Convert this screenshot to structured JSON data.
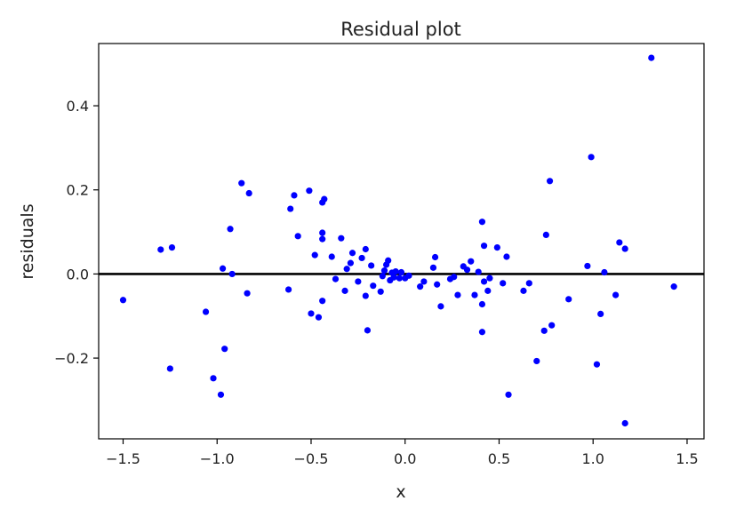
{
  "chart_data": {
    "type": "scatter",
    "title": "Residual plot",
    "xlabel": "x",
    "ylabel": "residuals",
    "xlim": [
      -1.63,
      1.59
    ],
    "ylim": [
      -0.392,
      0.548
    ],
    "xticks": [
      -1.5,
      -1.0,
      -0.5,
      0.0,
      0.5,
      1.0,
      1.5
    ],
    "xtick_labels": [
      "−1.5",
      "−1.0",
      "−0.5",
      "0.0",
      "0.5",
      "1.0",
      "1.5"
    ],
    "yticks": [
      -0.2,
      0.0,
      0.2,
      0.4
    ],
    "ytick_labels": [
      "−0.2",
      "0.0",
      "0.2",
      "0.4"
    ],
    "grid": false,
    "reference_line": {
      "y": 0.0,
      "color": "#000000"
    },
    "series": [
      {
        "color": "#0000ff",
        "points": [
          [
            -1.5,
            -0.062
          ],
          [
            -1.3,
            0.058
          ],
          [
            -1.24,
            0.063
          ],
          [
            -1.25,
            -0.225
          ],
          [
            -1.06,
            -0.09
          ],
          [
            -1.02,
            -0.248
          ],
          [
            -0.98,
            -0.287
          ],
          [
            -0.97,
            0.013
          ],
          [
            -0.96,
            -0.178
          ],
          [
            -0.93,
            0.107
          ],
          [
            -0.92,
            0.0
          ],
          [
            -0.87,
            0.216
          ],
          [
            -0.84,
            -0.046
          ],
          [
            -0.83,
            0.192
          ],
          [
            -0.62,
            -0.037
          ],
          [
            -0.61,
            0.155
          ],
          [
            -0.59,
            0.187
          ],
          [
            -0.57,
            0.09
          ],
          [
            -0.51,
            0.198
          ],
          [
            -0.5,
            -0.094
          ],
          [
            -0.48,
            0.045
          ],
          [
            -0.46,
            -0.103
          ],
          [
            -0.44,
            0.17
          ],
          [
            -0.43,
            0.178
          ],
          [
            -0.44,
            0.098
          ],
          [
            -0.44,
            0.083
          ],
          [
            -0.44,
            -0.064
          ],
          [
            -0.39,
            0.041
          ],
          [
            -0.37,
            -0.012
          ],
          [
            -0.34,
            0.085
          ],
          [
            -0.32,
            -0.04
          ],
          [
            -0.31,
            0.012
          ],
          [
            -0.29,
            0.026
          ],
          [
            -0.28,
            0.05
          ],
          [
            -0.25,
            -0.018
          ],
          [
            -0.23,
            0.038
          ],
          [
            -0.21,
            -0.052
          ],
          [
            -0.21,
            0.059
          ],
          [
            -0.2,
            -0.134
          ],
          [
            -0.18,
            0.02
          ],
          [
            -0.17,
            -0.028
          ],
          [
            -0.13,
            -0.042
          ],
          [
            -0.12,
            -0.005
          ],
          [
            -0.11,
            0.008
          ],
          [
            -0.1,
            0.022
          ],
          [
            -0.09,
            0.032
          ],
          [
            -0.08,
            -0.015
          ],
          [
            -0.07,
            0.003
          ],
          [
            -0.06,
            -0.008
          ],
          [
            -0.05,
            0.006
          ],
          [
            -0.03,
            -0.01
          ],
          [
            -0.02,
            0.004
          ],
          [
            0.0,
            -0.01
          ],
          [
            0.02,
            -0.004
          ],
          [
            0.08,
            -0.03
          ],
          [
            0.1,
            -0.018
          ],
          [
            0.15,
            0.015
          ],
          [
            0.16,
            0.04
          ],
          [
            0.17,
            -0.025
          ],
          [
            0.19,
            -0.077
          ],
          [
            0.24,
            -0.012
          ],
          [
            0.26,
            -0.007
          ],
          [
            0.28,
            -0.05
          ],
          [
            0.31,
            0.018
          ],
          [
            0.33,
            0.01
          ],
          [
            0.35,
            0.03
          ],
          [
            0.37,
            -0.05
          ],
          [
            0.39,
            0.005
          ],
          [
            0.41,
            -0.072
          ],
          [
            0.41,
            -0.138
          ],
          [
            0.41,
            0.124
          ],
          [
            0.42,
            0.067
          ],
          [
            0.42,
            -0.018
          ],
          [
            0.44,
            -0.04
          ],
          [
            0.45,
            -0.01
          ],
          [
            0.49,
            0.063
          ],
          [
            0.52,
            -0.022
          ],
          [
            0.54,
            0.041
          ],
          [
            0.55,
            -0.287
          ],
          [
            0.63,
            -0.04
          ],
          [
            0.66,
            -0.022
          ],
          [
            0.7,
            -0.207
          ],
          [
            0.74,
            -0.135
          ],
          [
            0.75,
            0.093
          ],
          [
            0.77,
            0.221
          ],
          [
            0.78,
            -0.122
          ],
          [
            0.87,
            -0.06
          ],
          [
            0.97,
            0.019
          ],
          [
            0.99,
            0.278
          ],
          [
            1.02,
            -0.215
          ],
          [
            1.04,
            -0.095
          ],
          [
            1.06,
            0.004
          ],
          [
            1.12,
            -0.05
          ],
          [
            1.14,
            0.075
          ],
          [
            1.17,
            -0.355
          ],
          [
            1.17,
            0.06
          ],
          [
            1.31,
            0.514
          ],
          [
            1.43,
            -0.03
          ]
        ]
      }
    ]
  }
}
